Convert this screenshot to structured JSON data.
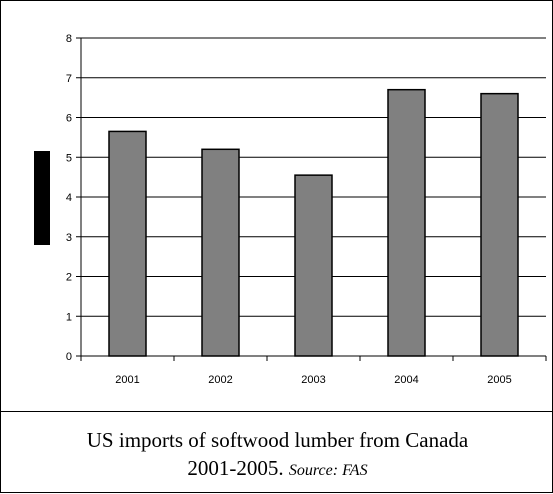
{
  "chart_data": {
    "type": "bar",
    "title": "",
    "xlabel": "",
    "ylabel": "",
    "categories": [
      "2001",
      "2002",
      "2003",
      "2004",
      "2005"
    ],
    "values": [
      5.65,
      5.2,
      4.55,
      6.7,
      6.6
    ],
    "ylim": [
      0,
      8
    ],
    "yticks": [
      0,
      1,
      2,
      3,
      4,
      5,
      6,
      7,
      8
    ],
    "grid": true,
    "legend": "none",
    "colors": {
      "bar": "#808080",
      "bar_stroke": "#000000",
      "grid": "#000000",
      "axis_marker": "#000000"
    }
  },
  "caption": {
    "line1": "US imports of softwood lumber from Canada",
    "line2": "2001-2005.",
    "source": "Source: FAS"
  }
}
